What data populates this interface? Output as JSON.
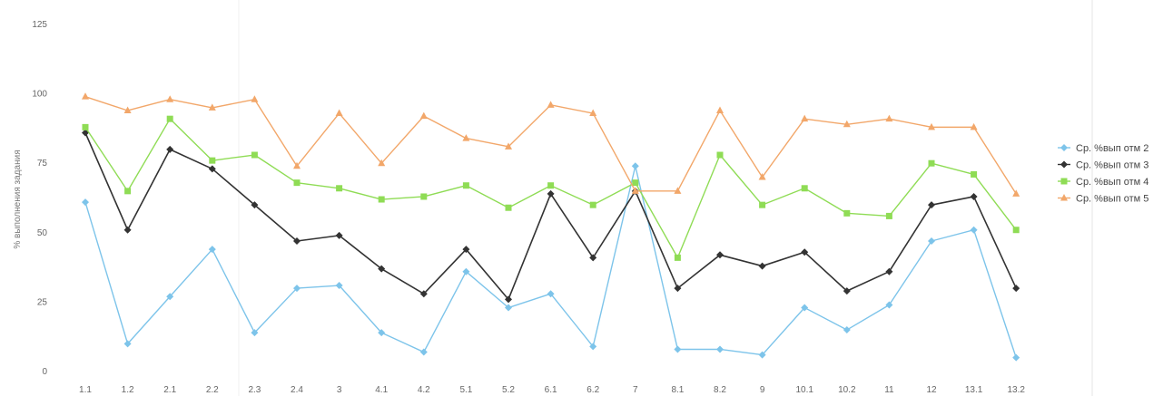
{
  "chart_data": {
    "type": "line",
    "ylabel": "% выполнения задания",
    "xlabel": "",
    "ylim": [
      0,
      125
    ],
    "yticks": [
      0,
      25,
      50,
      75,
      100,
      125
    ],
    "grid": false,
    "legend_position": "right",
    "categories": [
      "1.1",
      "1.2",
      "2.1",
      "2.2",
      "2.3",
      "2.4",
      "3",
      "4.1",
      "4.2",
      "5.1",
      "5.2",
      "6.1",
      "6.2",
      "7",
      "8.1",
      "8.2",
      "9",
      "10.1",
      "10.2",
      "11",
      "12",
      "13.1",
      "13.2"
    ],
    "series": [
      {
        "name": "Ср. %вып отм 2",
        "color": "#7dc4ea",
        "marker": "diamond",
        "values": [
          61,
          10,
          27,
          44,
          14,
          30,
          31,
          14,
          7,
          36,
          23,
          28,
          9,
          74,
          8,
          8,
          6,
          23,
          15,
          24,
          47,
          51,
          5
        ]
      },
      {
        "name": "Ср. %вып отм 3",
        "color": "#333333",
        "marker": "diamond",
        "values": [
          86,
          51,
          80,
          73,
          60,
          47,
          49,
          37,
          28,
          44,
          26,
          64,
          41,
          65,
          30,
          42,
          38,
          43,
          29,
          36,
          60,
          63,
          30
        ]
      },
      {
        "name": "Ср. %вып отм 4",
        "color": "#8fdc55",
        "marker": "square",
        "values": [
          88,
          65,
          91,
          76,
          78,
          68,
          66,
          62,
          63,
          67,
          59,
          67,
          60,
          68,
          41,
          78,
          60,
          66,
          57,
          56,
          75,
          71,
          51
        ]
      },
      {
        "name": "Ср. %вып отм 5",
        "color": "#f2a76a",
        "marker": "triangle",
        "values": [
          99,
          94,
          98,
          95,
          98,
          74,
          93,
          75,
          92,
          84,
          81,
          96,
          93,
          65,
          65,
          94,
          70,
          91,
          89,
          91,
          88,
          88,
          64
        ]
      }
    ]
  }
}
